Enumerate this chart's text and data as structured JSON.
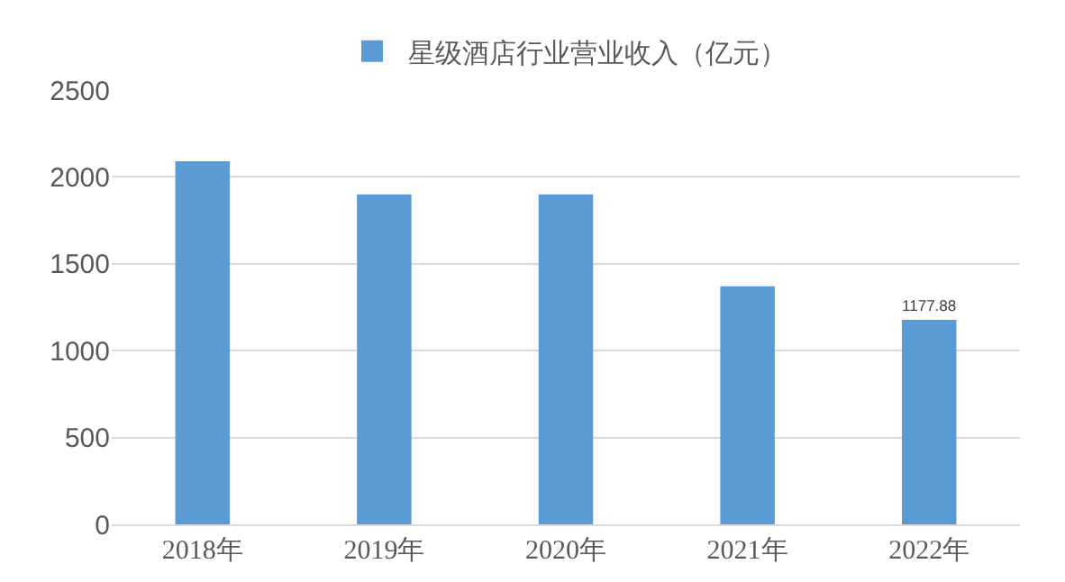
{
  "chart_data": {
    "type": "bar",
    "categories": [
      "2018年",
      "2019年",
      "2020年",
      "2021年",
      "2022年"
    ],
    "series": [
      {
        "name": "星级酒店行业营业收入（亿元）",
        "color": "#5b9bd5",
        "values": [
          2090,
          1900,
          1900,
          1370,
          1177.88
        ],
        "value_labels": [
          null,
          null,
          null,
          null,
          "1177.88"
        ]
      }
    ],
    "ylim": [
      0,
      2500
    ],
    "yticks": [
      0,
      500,
      1000,
      1500,
      2000,
      2500
    ],
    "grid": "y",
    "legend": "top"
  }
}
